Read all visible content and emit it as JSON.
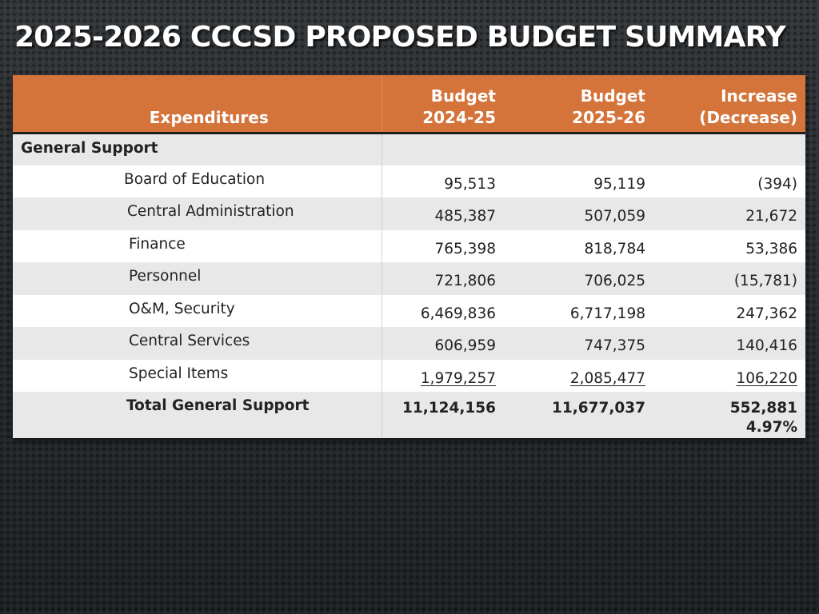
{
  "slide": {
    "title": "2025-2026 CCCSD PROPOSED BUDGET SUMMARY"
  },
  "table": {
    "headers": {
      "expenditures": "Expenditures",
      "budget_prev_line1": "Budget",
      "budget_prev_line2": "2024-25",
      "budget_next_line1": "Budget",
      "budget_next_line2": "2025-26",
      "change_line1": "Increase",
      "change_line2": "(Decrease)"
    },
    "section_label": "General Support",
    "rows": [
      {
        "label": "Board of Education",
        "budget_2024_25": "95,513",
        "budget_2025_26": "95,119",
        "change": "(394)"
      },
      {
        "label": "Central Administration",
        "budget_2024_25": "485,387",
        "budget_2025_26": "507,059",
        "change": "21,672"
      },
      {
        "label": "Finance",
        "budget_2024_25": "765,398",
        "budget_2025_26": "818,784",
        "change": "53,386"
      },
      {
        "label": "Personnel",
        "budget_2024_25": "721,806",
        "budget_2025_26": "706,025",
        "change": "(15,781)"
      },
      {
        "label": "O&M, Security",
        "budget_2024_25": "6,469,836",
        "budget_2025_26": "6,717,198",
        "change": "247,362"
      },
      {
        "label": "Central Services",
        "budget_2024_25": "606,959",
        "budget_2025_26": "747,375",
        "change": "140,416"
      },
      {
        "label": "Special Items",
        "budget_2024_25": "1,979,257",
        "budget_2025_26": "2,085,477",
        "change": "106,220"
      }
    ],
    "total": {
      "label": "Total General Support",
      "budget_2024_25": "11,124,156",
      "budget_2025_26": "11,677,037",
      "change": "552,881",
      "change_percent": "4.97%"
    }
  },
  "colors": {
    "header_background": "#d4743b",
    "row_light": "#ffffff",
    "row_dark": "#e8e8e8",
    "slide_background": "#2b2e31"
  }
}
